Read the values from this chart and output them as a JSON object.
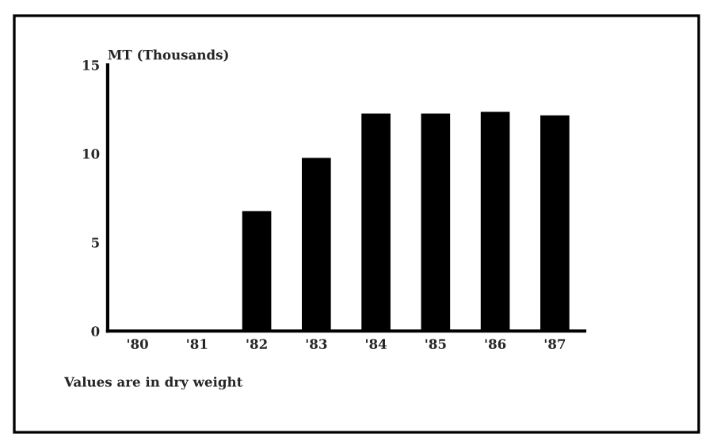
{
  "chart_data": {
    "type": "bar",
    "ylabel": "MT (Thousands)",
    "categories": [
      "'80",
      "'81",
      "'82",
      "'83",
      "'84",
      "'85",
      "'86",
      "'87"
    ],
    "values": [
      0,
      0,
      6.7,
      9.7,
      12.2,
      12.2,
      12.3,
      12.1
    ],
    "color": "#000000",
    "ylim": [
      0,
      15
    ],
    "yticks": [
      0,
      5,
      10,
      15
    ],
    "grid": false,
    "annotations": [
      "Values are in dry weight"
    ]
  }
}
